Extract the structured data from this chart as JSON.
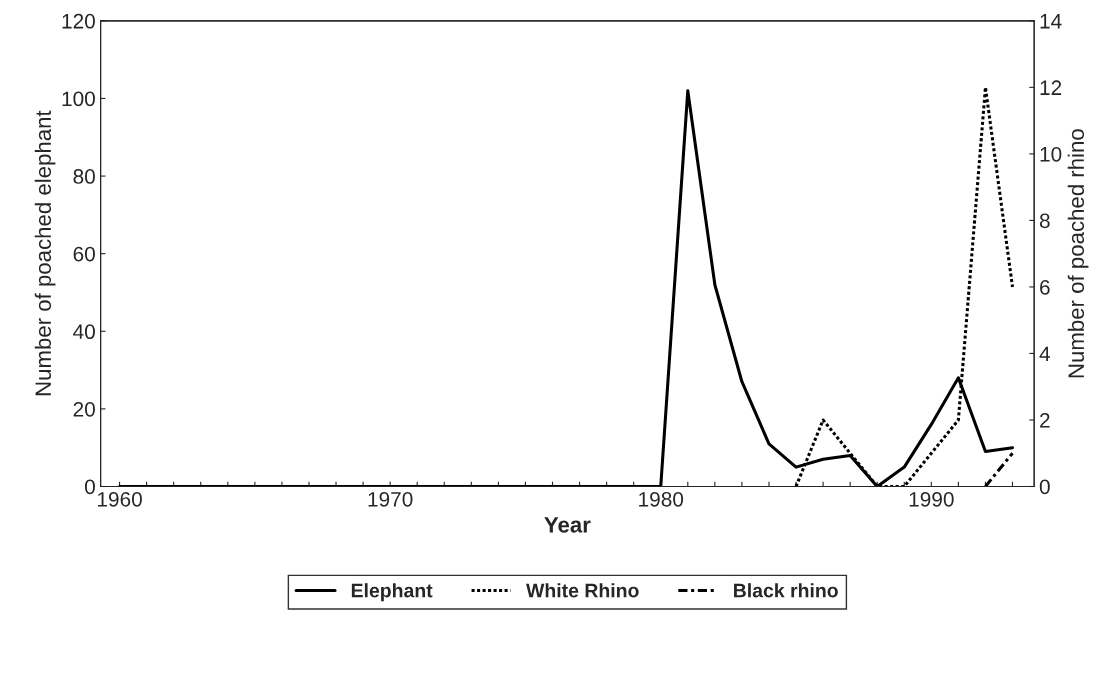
{
  "chart_data": {
    "type": "line",
    "xlabel": "Year",
    "ylabel": "Number of poached elephant",
    "y2label": "Number of poached rhino",
    "x": [
      1960,
      1961,
      1962,
      1963,
      1964,
      1965,
      1966,
      1967,
      1968,
      1969,
      1970,
      1971,
      1972,
      1973,
      1974,
      1975,
      1976,
      1977,
      1978,
      1979,
      1980,
      1981,
      1982,
      1983,
      1984,
      1985,
      1986,
      1987,
      1988,
      1989,
      1990,
      1991,
      1992,
      1993
    ],
    "series": [
      {
        "name": "Elephant",
        "color": "#000000",
        "line_style": "solid",
        "values": [
          0,
          0,
          0,
          0,
          0,
          0,
          0,
          0,
          0,
          0,
          0,
          0,
          0,
          0,
          0,
          0,
          0,
          0,
          0,
          0,
          0,
          102,
          52,
          27,
          11,
          5,
          7,
          8,
          0,
          5,
          16,
          28,
          9,
          10
        ]
      },
      {
        "name": "White Rhino",
        "color": "#000000",
        "line_style": "dotted",
        "axis": "y2",
        "values": [
          null,
          null,
          null,
          null,
          null,
          null,
          null,
          null,
          null,
          null,
          null,
          null,
          null,
          null,
          null,
          null,
          null,
          null,
          null,
          null,
          null,
          null,
          null,
          null,
          null,
          0,
          2,
          1,
          0,
          0,
          1,
          2,
          12,
          6
        ]
      },
      {
        "name": "Black rhino",
        "color": "#000000",
        "line_style": "dashdot",
        "axis": "y2",
        "values": [
          null,
          null,
          null,
          null,
          null,
          null,
          null,
          null,
          null,
          null,
          null,
          null,
          null,
          null,
          null,
          null,
          null,
          null,
          null,
          null,
          null,
          null,
          null,
          null,
          null,
          null,
          null,
          null,
          null,
          null,
          null,
          null,
          0,
          1
        ]
      }
    ],
    "xlim": [
      1959.3,
      1993.8
    ],
    "xticks": [
      1960,
      {
        "value": 1961,
        "label": null
      },
      {
        "value": 1962,
        "label": null
      },
      {
        "value": 1963,
        "label": null
      },
      {
        "value": 1964,
        "label": null
      },
      {
        "value": 1965,
        "label": null
      },
      {
        "value": 1966,
        "label": null
      },
      {
        "value": 1967,
        "label": null
      },
      {
        "value": 1968,
        "label": null
      },
      {
        "value": 1969,
        "label": null
      },
      1970,
      {
        "value": 1971,
        "label": null
      },
      {
        "value": 1972,
        "label": null
      },
      {
        "value": 1973,
        "label": null
      },
      {
        "value": 1974,
        "label": null
      },
      {
        "value": 1975,
        "label": null
      },
      {
        "value": 1976,
        "label": null
      },
      {
        "value": 1977,
        "label": null
      },
      {
        "value": 1978,
        "label": null
      },
      {
        "value": 1979,
        "label": null
      },
      1980,
      {
        "value": 1981,
        "label": null
      },
      {
        "value": 1982,
        "label": null
      },
      {
        "value": 1983,
        "label": null
      },
      {
        "value": 1984,
        "label": null
      },
      {
        "value": 1985,
        "label": null
      },
      {
        "value": 1986,
        "label": null
      },
      {
        "value": 1987,
        "label": null
      },
      {
        "value": 1988,
        "label": null
      },
      {
        "value": 1989,
        "label": null
      },
      1990,
      {
        "value": 1991,
        "label": null
      },
      {
        "value": 1992,
        "label": null
      },
      {
        "value": 1993,
        "label": null
      }
    ],
    "ylim": [
      0,
      120
    ],
    "yticks": [
      0,
      20,
      40,
      60,
      80,
      100,
      120
    ],
    "y2lim": [
      0,
      14
    ],
    "y2ticks": [
      0,
      2,
      4,
      6,
      8,
      10,
      12,
      14
    ],
    "grid": false,
    "legend": "bottom",
    "marker": "none"
  }
}
